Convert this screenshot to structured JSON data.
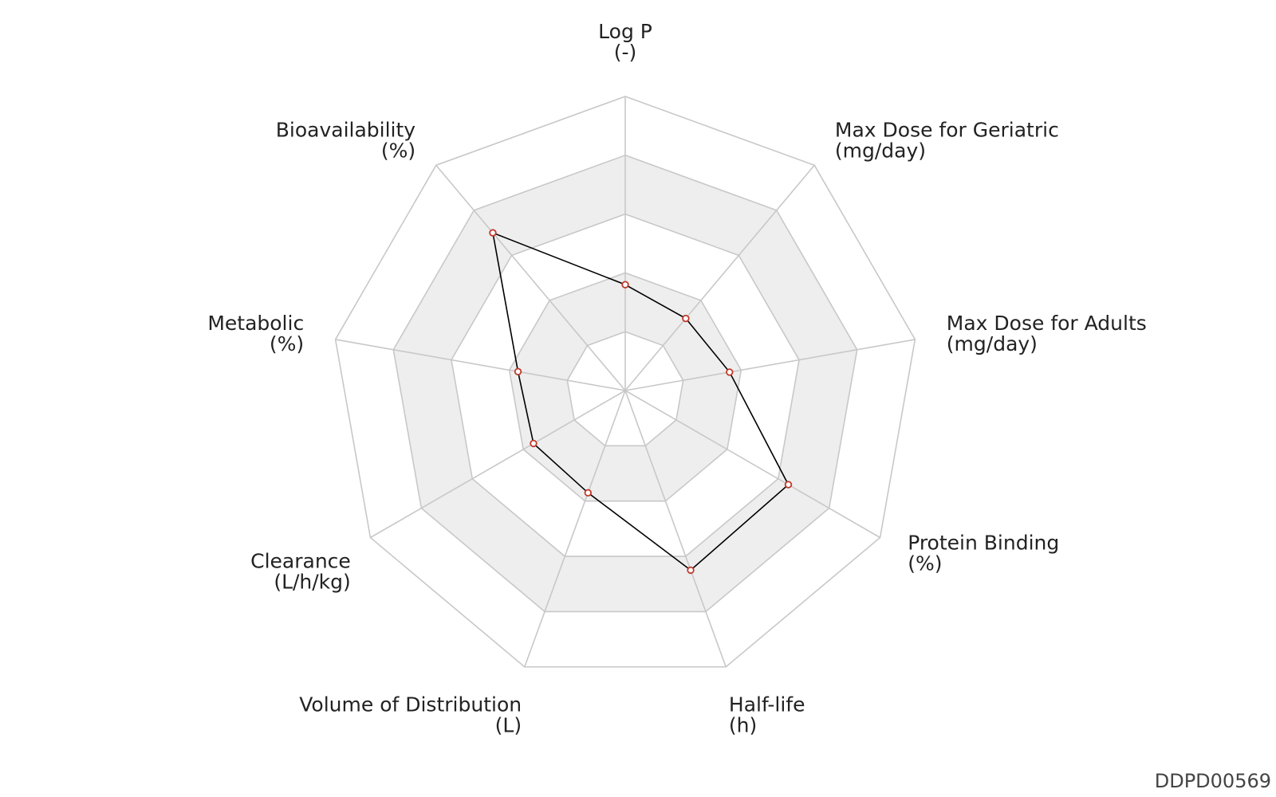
{
  "chart_data": {
    "type": "radar",
    "axes": [
      {
        "name": "Log P",
        "unit": "(-)"
      },
      {
        "name": "Max Dose for Geriatric",
        "unit": "(mg/day)"
      },
      {
        "name": "Max Dose for Adults",
        "unit": "(mg/day)"
      },
      {
        "name": "Protein Binding",
        "unit": "(%)"
      },
      {
        "name": "Half-life",
        "unit": "(h)"
      },
      {
        "name": "Volume of Distribution",
        "unit": "(L)"
      },
      {
        "name": "Clearance",
        "unit": "(L/h/kg)"
      },
      {
        "name": "Metabolic",
        "unit": "(%)"
      },
      {
        "name": "Bioavailability",
        "unit": "(%)"
      }
    ],
    "rings": 5,
    "range": [
      0,
      1
    ],
    "series": [
      {
        "values": [
          0.36,
          0.32,
          0.36,
          0.64,
          0.65,
          0.37,
          0.36,
          0.37,
          0.7
        ]
      }
    ],
    "colors": {
      "line": "#000000",
      "marker": "#c0392b",
      "band": "#eeeeee",
      "grid": "#c8c8c8"
    }
  },
  "footer": {
    "id": "DDPD00569"
  }
}
